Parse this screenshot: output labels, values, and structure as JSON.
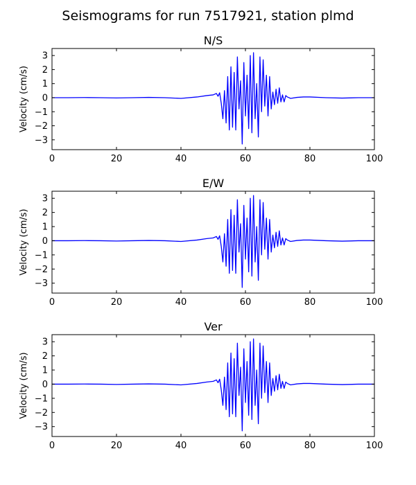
{
  "figure": {
    "title": "Seismograms for run 7517921, station plmd"
  },
  "chart_data": [
    {
      "type": "line",
      "title": "N/S",
      "xlabel": "",
      "ylabel": "Velocity (cm/s)",
      "xlim": [
        0,
        100
      ],
      "ylim": [
        -3.7,
        3.5
      ],
      "xticks": [
        0,
        20,
        40,
        60,
        80,
        100
      ],
      "yticks": [
        -3,
        -2,
        -1,
        0,
        1,
        2,
        3
      ],
      "grid": false,
      "line_color": "#0000ff",
      "series": [
        {
          "x": [
            0,
            5,
            10,
            15,
            20,
            25,
            30,
            35,
            40,
            45,
            48,
            50,
            51,
            51.5,
            52,
            52.5,
            53,
            53.5,
            54,
            54.5,
            55,
            55.5,
            56,
            56.5,
            57,
            57.5,
            58,
            58.5,
            59,
            59.5,
            60,
            60.5,
            61,
            61.5,
            62,
            62.5,
            63,
            63.5,
            64,
            64.5,
            65,
            65.5,
            66,
            66.5,
            67,
            67.5,
            68,
            68.5,
            69,
            69.5,
            70,
            70.5,
            71,
            71.5,
            72,
            72.5,
            73,
            74,
            76,
            78,
            80,
            85,
            90,
            95,
            100
          ],
          "y": [
            0,
            0,
            0.01,
            0,
            -0.02,
            0,
            0.02,
            0,
            -0.05,
            0.05,
            0.15,
            0.2,
            0.3,
            0.1,
            0.35,
            -0.4,
            -1.5,
            0.5,
            -1.8,
            1.5,
            -2.3,
            2.2,
            -2.1,
            1.8,
            -2.3,
            2.9,
            -0.8,
            1.2,
            -3.3,
            2.5,
            -1.3,
            1.6,
            -2.2,
            3.0,
            -2.5,
            3.2,
            -1.5,
            1.0,
            -2.8,
            2.9,
            -1.0,
            2.7,
            -0.6,
            1.6,
            -1.3,
            1.5,
            -0.8,
            0.4,
            -0.5,
            0.6,
            -0.4,
            0.7,
            -0.3,
            0.2,
            -0.3,
            0.15,
            0.05,
            -0.05,
            0.02,
            0.05,
            0.05,
            0,
            -0.03,
            0,
            0
          ]
        }
      ]
    },
    {
      "type": "line",
      "title": "E/W",
      "xlabel": "",
      "ylabel": "Velocity (cm/s)",
      "xlim": [
        0,
        100
      ],
      "ylim": [
        -3.7,
        3.5
      ],
      "xticks": [
        0,
        20,
        40,
        60,
        80,
        100
      ],
      "yticks": [
        -3,
        -2,
        -1,
        0,
        1,
        2,
        3
      ],
      "grid": false,
      "line_color": "#0000ff",
      "series": [
        {
          "x": [
            0,
            5,
            10,
            15,
            20,
            25,
            30,
            35,
            40,
            45,
            48,
            50,
            51,
            51.5,
            52,
            52.5,
            53,
            53.5,
            54,
            54.5,
            55,
            55.5,
            56,
            56.5,
            57,
            57.5,
            58,
            58.5,
            59,
            59.5,
            60,
            60.5,
            61,
            61.5,
            62,
            62.5,
            63,
            63.5,
            64,
            64.5,
            65,
            65.5,
            66,
            66.5,
            67,
            67.5,
            68,
            68.5,
            69,
            69.5,
            70,
            70.5,
            71,
            71.5,
            72,
            72.5,
            73,
            74,
            76,
            78,
            80,
            85,
            90,
            95,
            100
          ],
          "y": [
            0,
            0,
            0.01,
            0,
            -0.02,
            0,
            0.02,
            0,
            -0.05,
            0.05,
            0.15,
            0.2,
            0.3,
            0.1,
            0.35,
            -0.4,
            -1.5,
            0.5,
            -1.8,
            1.5,
            -2.3,
            2.2,
            -2.1,
            1.8,
            -2.3,
            2.9,
            -0.8,
            1.2,
            -3.3,
            2.5,
            -1.3,
            1.6,
            -2.2,
            3.0,
            -2.5,
            3.2,
            -1.5,
            1.0,
            -2.8,
            2.9,
            -1.0,
            2.7,
            -0.6,
            1.6,
            -1.3,
            1.5,
            -0.8,
            0.4,
            -0.5,
            0.6,
            -0.4,
            0.7,
            -0.3,
            0.2,
            -0.3,
            0.15,
            0.05,
            -0.05,
            0.02,
            0.05,
            0.05,
            0,
            -0.03,
            0,
            0
          ]
        }
      ]
    },
    {
      "type": "line",
      "title": "Ver",
      "xlabel": "",
      "ylabel": "Velocity (cm/s)",
      "xlim": [
        0,
        100
      ],
      "ylim": [
        -3.7,
        3.5
      ],
      "xticks": [
        0,
        20,
        40,
        60,
        80,
        100
      ],
      "yticks": [
        -3,
        -2,
        -1,
        0,
        1,
        2,
        3
      ],
      "grid": false,
      "line_color": "#0000ff",
      "series": [
        {
          "x": [
            0,
            5,
            10,
            15,
            20,
            25,
            30,
            35,
            40,
            45,
            48,
            50,
            51,
            51.5,
            52,
            52.5,
            53,
            53.5,
            54,
            54.5,
            55,
            55.5,
            56,
            56.5,
            57,
            57.5,
            58,
            58.5,
            59,
            59.5,
            60,
            60.5,
            61,
            61.5,
            62,
            62.5,
            63,
            63.5,
            64,
            64.5,
            65,
            65.5,
            66,
            66.5,
            67,
            67.5,
            68,
            68.5,
            69,
            69.5,
            70,
            70.5,
            71,
            71.5,
            72,
            72.5,
            73,
            74,
            76,
            78,
            80,
            85,
            90,
            95,
            100
          ],
          "y": [
            0,
            0,
            0.01,
            0,
            -0.02,
            0,
            0.02,
            0,
            -0.05,
            0.05,
            0.15,
            0.2,
            0.3,
            0.1,
            0.35,
            -0.4,
            -1.5,
            0.5,
            -1.8,
            1.5,
            -2.3,
            2.2,
            -2.1,
            1.8,
            -2.3,
            2.9,
            -0.8,
            1.2,
            -3.3,
            2.5,
            -1.3,
            1.6,
            -2.2,
            3.0,
            -2.5,
            3.2,
            -1.5,
            1.0,
            -2.8,
            2.9,
            -1.0,
            2.7,
            -0.6,
            1.6,
            -1.3,
            1.5,
            -0.8,
            0.4,
            -0.5,
            0.6,
            -0.4,
            0.7,
            -0.3,
            0.2,
            -0.3,
            0.15,
            0.05,
            -0.05,
            0.02,
            0.05,
            0.05,
            0,
            -0.03,
            0,
            0
          ]
        }
      ]
    }
  ]
}
